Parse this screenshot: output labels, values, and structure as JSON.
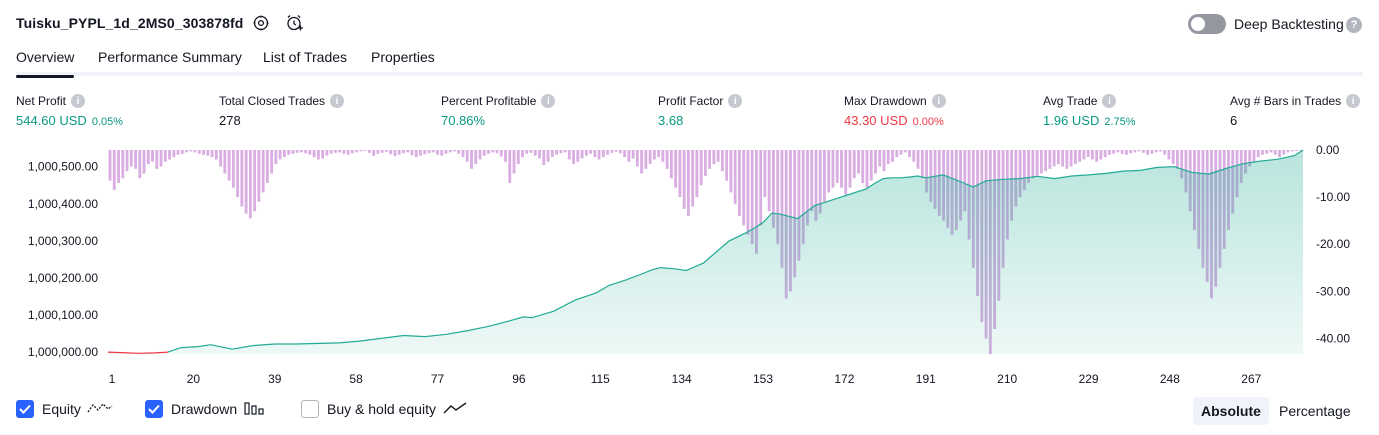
{
  "header": {
    "strategy_name": "Tuisku_PYPL_1d_2MS0_303878fd",
    "deep_backtesting_label": "Deep Backtesting",
    "deep_backtesting_on": false
  },
  "tabs": [
    {
      "label": "Overview",
      "active": true
    },
    {
      "label": "Performance Summary",
      "active": false
    },
    {
      "label": "List of Trades",
      "active": false
    },
    {
      "label": "Properties",
      "active": false
    }
  ],
  "metrics": [
    {
      "label": "Net Profit",
      "value": "544.60 USD",
      "percent": "0.05%",
      "tone": "pos"
    },
    {
      "label": "Total Closed Trades",
      "value": "278",
      "percent": "",
      "tone": "neutral"
    },
    {
      "label": "Percent Profitable",
      "value": "70.86%",
      "percent": "",
      "tone": "pos"
    },
    {
      "label": "Profit Factor",
      "value": "3.68",
      "percent": "",
      "tone": "pos"
    },
    {
      "label": "Max Drawdown",
      "value": "43.30 USD",
      "percent": "0.00%",
      "tone": "neg"
    },
    {
      "label": "Avg Trade",
      "value": "1.96 USD",
      "percent": "2.75%",
      "tone": "pos"
    },
    {
      "label": "Avg # Bars in Trades",
      "value": "6",
      "percent": "",
      "tone": "neutral"
    }
  ],
  "chart_data": {
    "type": "area",
    "x_ticks": [
      "1",
      "20",
      "39",
      "58",
      "77",
      "96",
      "115",
      "134",
      "153",
      "172",
      "191",
      "210",
      "229",
      "248",
      "267"
    ],
    "x_tick_values": [
      1,
      20,
      39,
      58,
      77,
      96,
      115,
      134,
      153,
      172,
      191,
      210,
      229,
      248,
      267
    ],
    "xlim": [
      1,
      280
    ],
    "left_axis_ticks": [
      "1,000,000.00",
      "1,000,100.00",
      "1,000,200.00",
      "1,000,300.00",
      "1,000,400.00",
      "1,000,500.00"
    ],
    "left_axis_tick_values": [
      1000000,
      1000100,
      1000200,
      1000300,
      1000400,
      1000500
    ],
    "ylim_left": [
      999995,
      1000545
    ],
    "right_axis_ticks": [
      "0.00",
      "-10.00",
      "-20.00",
      "-30.00",
      "-40.00"
    ],
    "right_axis_tick_values": [
      0,
      -10,
      -20,
      -30,
      -40
    ],
    "ylim_right": [
      -43.3,
      0
    ],
    "equity_series": {
      "x": [
        1,
        8,
        12,
        15,
        18,
        22,
        25,
        30,
        35,
        40,
        45,
        55,
        60,
        70,
        75,
        80,
        85,
        90,
        95,
        98,
        100,
        105,
        110,
        115,
        118,
        122,
        125,
        128,
        130,
        133,
        136,
        140,
        143,
        146,
        150,
        152,
        154,
        156,
        158,
        162,
        166,
        170,
        174,
        178,
        180,
        182,
        184,
        186,
        188,
        190,
        192,
        196,
        200,
        203,
        206,
        210,
        214,
        218,
        222,
        226,
        230,
        234,
        238,
        242,
        246,
        250,
        254,
        258,
        262,
        266,
        270,
        274,
        278,
        280
      ],
      "y": [
        1000000,
        999997,
        999998,
        1000000,
        1000012,
        1000015,
        1000020,
        1000008,
        1000018,
        1000022,
        1000022,
        1000025,
        1000030,
        1000045,
        1000042,
        1000048,
        1000058,
        1000070,
        1000085,
        1000095,
        1000093,
        1000110,
        1000140,
        1000160,
        1000180,
        1000195,
        1000208,
        1000222,
        1000228,
        1000225,
        1000220,
        1000240,
        1000270,
        1000300,
        1000322,
        1000335,
        1000350,
        1000375,
        1000372,
        1000360,
        1000395,
        1000410,
        1000425,
        1000440,
        1000455,
        1000468,
        1000470,
        1000470,
        1000472,
        1000475,
        1000470,
        1000478,
        1000460,
        1000445,
        1000462,
        1000466,
        1000468,
        1000474,
        1000468,
        1000475,
        1000478,
        1000482,
        1000488,
        1000490,
        1000498,
        1000500,
        1000485,
        1000480,
        1000495,
        1000508,
        1000515,
        1000520,
        1000530,
        1000545
      ]
    },
    "drawdown_series": {
      "values": [
        -6.5,
        -8.5,
        -7.0,
        -6.0,
        -4.5,
        -3.5,
        -4.0,
        -6.0,
        -5.0,
        -3.0,
        -2.5,
        -4.0,
        -3.5,
        -2.5,
        -2.0,
        -1.5,
        -1.0,
        -0.8,
        -0.5,
        -0.3,
        -0.5,
        -0.8,
        -1.0,
        -1.2,
        -1.5,
        -2.0,
        -3.5,
        -5.0,
        -6.5,
        -8.0,
        -10.0,
        -12.0,
        -13.5,
        -14.5,
        -13.0,
        -11.0,
        -9.0,
        -7.0,
        -5.0,
        -3.0,
        -2.0,
        -1.5,
        -1.0,
        -0.8,
        -0.6,
        -0.5,
        -0.7,
        -1.0,
        -1.5,
        -2.0,
        -1.8,
        -1.2,
        -0.8,
        -0.6,
        -0.5,
        -0.8,
        -1.0,
        -0.7,
        -0.5,
        -0.3,
        -0.2,
        -0.6,
        -1.2,
        -0.8,
        -0.6,
        -0.4,
        -0.9,
        -1.3,
        -1.0,
        -0.7,
        -0.5,
        -1.1,
        -1.5,
        -1.2,
        -0.9,
        -0.7,
        -0.5,
        -1.0,
        -1.2,
        -0.8,
        -0.5,
        -0.3,
        -0.8,
        -1.5,
        -2.5,
        -4.0,
        -3.0,
        -2.0,
        -1.2,
        -0.8,
        -0.5,
        -0.7,
        -1.4,
        -2.5,
        -7.0,
        -5.0,
        -3.0,
        -1.5,
        -0.8,
        -0.6,
        -1.2,
        -1.8,
        -3.2,
        -2.5,
        -1.5,
        -1.0,
        -0.7,
        -0.5,
        -2.0,
        -3.0,
        -2.5,
        -1.8,
        -1.2,
        -0.8,
        -1.5,
        -2.0,
        -1.5,
        -1.0,
        -0.6,
        -0.4,
        -0.7,
        -1.5,
        -2.5,
        -1.8,
        -3.5,
        -5.0,
        -4.0,
        -3.0,
        -2.0,
        -1.5,
        -2.5,
        -4.0,
        -6.0,
        -8.0,
        -10.0,
        -12.5,
        -14.0,
        -12.0,
        -10.0,
        -7.5,
        -5.5,
        -4.0,
        -3.0,
        -2.5,
        -4.5,
        -6.5,
        -9.0,
        -11.5,
        -14.0,
        -16.0,
        -18.0,
        -20.0,
        -22.0,
        -16.0,
        -10.0,
        -13.0,
        -16.5,
        -20.0,
        -25.0,
        -31.5,
        -30.0,
        -27.0,
        -23.5,
        -20.0,
        -16.0,
        -13.0,
        -15.0,
        -13.5,
        -11.0,
        -9.0,
        -8.0,
        -7.0,
        -8.0,
        -9.5,
        -8.0,
        -6.0,
        -5.0,
        -7.0,
        -8.0,
        -6.5,
        -5.0,
        -3.5,
        -4.5,
        -3.0,
        -2.5,
        -1.5,
        -1.0,
        -0.5,
        -1.5,
        -2.5,
        -4.0,
        -6.0,
        -9.0,
        -11.0,
        -12.5,
        -14.0,
        -15.0,
        -16.5,
        -18.0,
        -17.0,
        -15.0,
        -13.0,
        -19.0,
        -25.0,
        -31.0,
        -36.5,
        -40.0,
        -43.3,
        -38.0,
        -32.0,
        -25.0,
        -19.0,
        -15.0,
        -12.0,
        -10.0,
        -8.5,
        -7.0,
        -6.0,
        -5.5,
        -5.0,
        -4.5,
        -4.0,
        -3.5,
        -3.0,
        -3.5,
        -4.0,
        -3.5,
        -3.0,
        -2.5,
        -2.0,
        -1.5,
        -2.0,
        -2.5,
        -2.0,
        -1.5,
        -1.0,
        -0.8,
        -0.5,
        -0.8,
        -1.0,
        -0.7,
        -0.5,
        -0.3,
        -0.6,
        -1.0,
        -0.8,
        -0.5,
        -0.3,
        -1.0,
        -2.0,
        -3.0,
        -4.0,
        -6.0,
        -9.0,
        -13.0,
        -17.0,
        -21.0,
        -25.0,
        -28.0,
        -31.5,
        -29.0,
        -25.0,
        -21.0,
        -17.0,
        -13.5,
        -10.0,
        -7.0,
        -5.0,
        -3.5,
        -2.5,
        -1.5,
        -1.0,
        -0.8,
        -0.5,
        -1.0,
        -1.5,
        -1.0,
        -0.5,
        -0.3,
        -0.2,
        -0.1
      ]
    }
  },
  "legend": [
    {
      "label": "Equity",
      "checked": true
    },
    {
      "label": "Drawdown",
      "checked": true
    },
    {
      "label": "Buy & hold equity",
      "checked": false
    }
  ],
  "view_toggle": [
    {
      "label": "Absolute",
      "active": true
    },
    {
      "label": "Percentage",
      "active": false
    }
  ],
  "colors": {
    "profit": "#089981",
    "loss": "#f23645",
    "equity_line": "#22ab94",
    "equity_fill": "#22ab94",
    "drawdown_bar": "#ce93d8",
    "checkbox": "#2962ff"
  }
}
